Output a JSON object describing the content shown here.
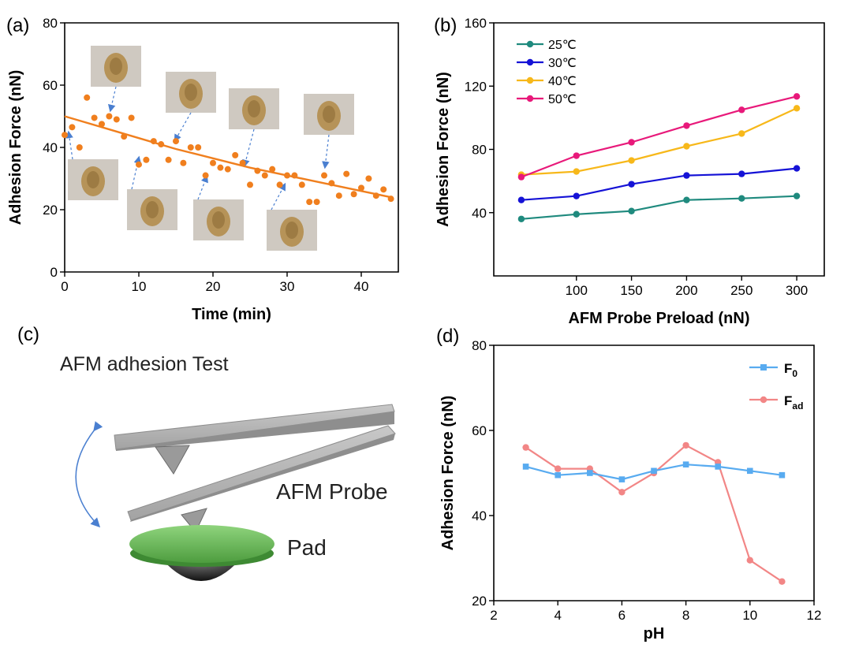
{
  "panels": {
    "a": "(a)",
    "b": "(b)",
    "c": "(c)",
    "d": "(d)"
  },
  "chart_data": [
    {
      "panel": "a",
      "type": "scatter",
      "xlabel": "Time (min)",
      "ylabel": "Adhesion Force (nN)",
      "xlim": [
        0,
        45
      ],
      "ylim": [
        0,
        80
      ],
      "xticks": [
        "0",
        "10",
        "20",
        "30",
        "40"
      ],
      "yticks": [
        "0",
        "20",
        "40",
        "60",
        "80"
      ],
      "colors": {
        "points": "#F07F1E",
        "fit": "#F07F1E"
      },
      "points": [
        [
          0,
          44
        ],
        [
          1,
          46.5
        ],
        [
          2,
          40
        ],
        [
          3,
          56
        ],
        [
          4,
          49.5
        ],
        [
          5,
          47.5
        ],
        [
          6,
          50
        ],
        [
          7,
          49
        ],
        [
          8,
          43.5
        ],
        [
          9,
          49.5
        ],
        [
          10,
          34.5
        ],
        [
          11,
          36
        ],
        [
          12,
          42
        ],
        [
          13,
          41
        ],
        [
          14,
          36
        ],
        [
          15,
          42
        ],
        [
          16,
          35
        ],
        [
          17,
          40
        ],
        [
          18,
          40
        ],
        [
          19,
          31
        ],
        [
          20,
          35
        ],
        [
          21,
          33.5
        ],
        [
          22,
          33
        ],
        [
          23,
          37.5
        ],
        [
          24,
          35
        ],
        [
          25,
          28
        ],
        [
          26,
          32.5
        ],
        [
          27,
          31
        ],
        [
          28,
          33
        ],
        [
          29,
          28
        ],
        [
          30,
          31
        ],
        [
          31,
          31
        ],
        [
          32,
          28
        ],
        [
          33,
          22.5
        ],
        [
          34,
          22.5
        ],
        [
          35,
          31
        ],
        [
          36,
          28.5
        ],
        [
          37,
          24.5
        ],
        [
          38,
          31.5
        ],
        [
          39,
          25
        ],
        [
          40,
          27
        ],
        [
          41,
          30
        ],
        [
          42,
          24.5
        ],
        [
          43,
          26.5
        ],
        [
          44,
          23.5
        ]
      ],
      "fit_line": {
        "x": [
          0,
          5,
          10,
          15,
          20,
          25,
          30,
          35,
          40,
          44
        ],
        "y": [
          50,
          46.5,
          43,
          39.5,
          36.5,
          33.5,
          31,
          28.5,
          26,
          24
        ]
      }
    },
    {
      "panel": "b",
      "type": "line",
      "xlabel": "AFM Probe Preload (nN)",
      "ylabel": "Adhesion Force (nN)",
      "xlim": [
        25,
        325
      ],
      "ylim": [
        0,
        160
      ],
      "xticks": [
        "100",
        "150",
        "200",
        "250",
        "300"
      ],
      "yticks": [
        "40",
        "80",
        "120",
        "160"
      ],
      "legend_position": "top-left",
      "x": [
        50,
        100,
        150,
        200,
        250,
        300
      ],
      "series": [
        {
          "name": "25℃",
          "color": "#1F8A7E",
          "values": [
            36,
            39,
            41,
            48,
            49,
            50.5
          ]
        },
        {
          "name": "30℃",
          "color": "#1512D6",
          "values": [
            48,
            50.5,
            58,
            63.5,
            64.5,
            68
          ]
        },
        {
          "name": "40℃",
          "color": "#F7B81A",
          "values": [
            64,
            66,
            73,
            82,
            90,
            106
          ]
        },
        {
          "name": "50℃",
          "color": "#E8197A",
          "values": [
            62.5,
            76,
            84.5,
            95,
            105,
            113.5
          ]
        }
      ]
    },
    {
      "panel": "d",
      "type": "line",
      "xlabel": "pH",
      "ylabel": "Adhesion Force (nN)",
      "xlim": [
        2,
        12
      ],
      "ylim": [
        20,
        80
      ],
      "xticks": [
        "2",
        "4",
        "6",
        "8",
        "10",
        "12"
      ],
      "yticks": [
        "20",
        "40",
        "60",
        "80"
      ],
      "legend_position": "top-right",
      "x": [
        3,
        4,
        5,
        6,
        7,
        8,
        9,
        10,
        11
      ],
      "series": [
        {
          "name": "F",
          "subscript": "0",
          "color": "#58ABF0",
          "marker": "square",
          "values": [
            51.5,
            49.5,
            50,
            48.5,
            50.5,
            52,
            51.5,
            50.5,
            49.5
          ]
        },
        {
          "name": "F",
          "subscript": "ad",
          "color": "#F28686",
          "marker": "circle",
          "values": [
            56,
            51,
            51,
            45.5,
            50,
            56.5,
            52.5,
            29.5,
            24.5
          ]
        }
      ]
    }
  ],
  "diagram": {
    "title": "AFM adhesion Test",
    "probe_label": "AFM Probe",
    "pad_label": "Pad",
    "pad_color": "#6CC259"
  }
}
